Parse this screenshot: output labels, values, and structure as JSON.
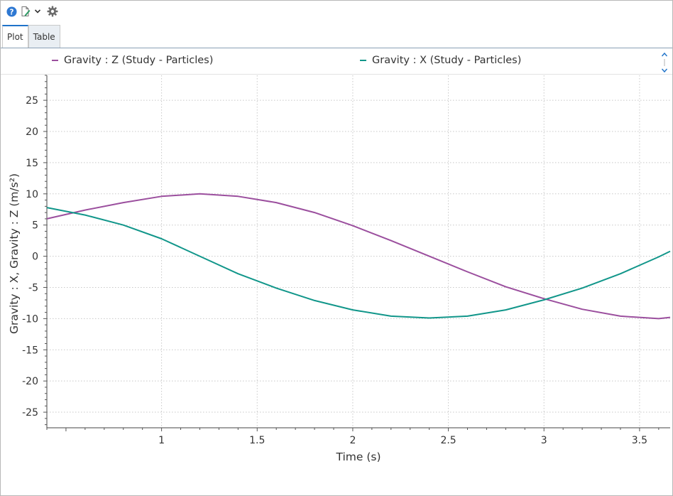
{
  "toolbar": {
    "help_icon": "question-circle-icon",
    "export_icon": "document-edit-icon",
    "dropdown_icon": "chevron-down-icon",
    "settings_icon": "gear-icon"
  },
  "tabs": [
    {
      "label": "Plot",
      "active": true
    },
    {
      "label": "Table",
      "active": false
    }
  ],
  "legend": {
    "entries": [
      {
        "label": "Gravity : Z (Study - Particles)",
        "color": "#9b4f9e"
      },
      {
        "label": "Gravity : X (Study - Particles)",
        "color": "#11968a"
      }
    ]
  },
  "chart_data": {
    "type": "line",
    "title": "",
    "xlabel": "Time (s)",
    "ylabel": "Gravity : X, Gravity : Z (m/s²)",
    "xlim": [
      0.4,
      3.66
    ],
    "ylim": [
      -27.5,
      29
    ],
    "x_ticks": [
      1,
      1.5,
      2,
      2.5,
      3,
      3.5
    ],
    "x_tick_labels": [
      "1",
      "1.5",
      "2",
      "2.5",
      "3",
      "3.5"
    ],
    "y_ticks": [
      -25,
      -20,
      -15,
      -10,
      -5,
      0,
      5,
      10,
      15,
      20,
      25
    ],
    "y_tick_labels": [
      "-25",
      "-20",
      "-15",
      "-10",
      "-5",
      "0",
      "5",
      "10",
      "15",
      "20",
      "25"
    ],
    "grid": true,
    "legend_position": "top",
    "series": [
      {
        "name": "Gravity : Z (Study - Particles)",
        "color": "#9b4f9e",
        "x": [
          0.4,
          0.6,
          0.8,
          1.0,
          1.2,
          1.4,
          1.6,
          1.8,
          2.0,
          2.2,
          2.4,
          2.6,
          2.8,
          3.0,
          3.2,
          3.4,
          3.6,
          3.66
        ],
        "y": [
          6.0,
          7.4,
          8.6,
          9.6,
          10.0,
          9.6,
          8.6,
          7.0,
          4.9,
          2.5,
          0.0,
          -2.5,
          -4.9,
          -6.8,
          -8.5,
          -9.6,
          -10.0,
          -9.8
        ]
      },
      {
        "name": "Gravity : X (Study - Particles)",
        "color": "#11968a",
        "x": [
          0.4,
          0.6,
          0.8,
          1.0,
          1.2,
          1.4,
          1.6,
          1.8,
          2.0,
          2.2,
          2.4,
          2.6,
          2.8,
          3.0,
          3.2,
          3.4,
          3.6,
          3.66
        ],
        "y": [
          7.8,
          6.6,
          5.0,
          2.8,
          0.0,
          -2.8,
          -5.1,
          -7.1,
          -8.6,
          -9.6,
          -9.9,
          -9.6,
          -8.6,
          -7.0,
          -5.1,
          -2.8,
          -0.1,
          0.8
        ]
      }
    ]
  }
}
